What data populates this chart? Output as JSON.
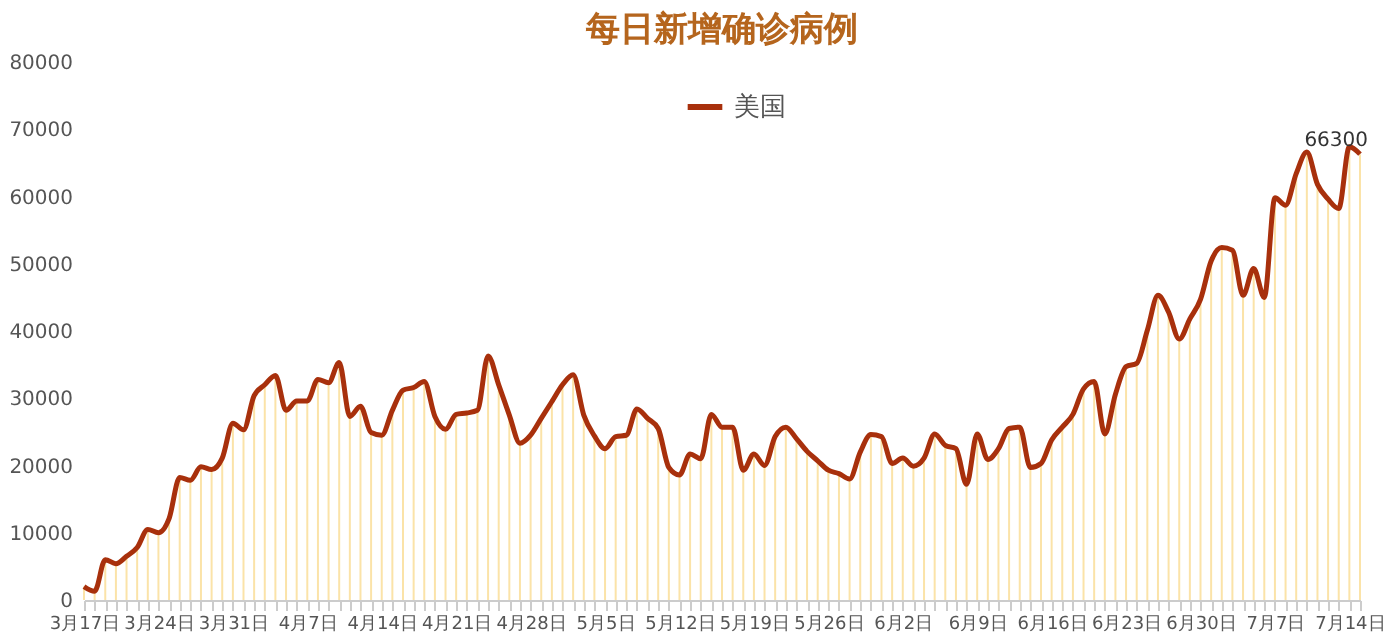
{
  "chart_data": {
    "type": "line",
    "title": "每日新增确诊病例",
    "categories": [
      "3月17日",
      null,
      null,
      null,
      null,
      null,
      null,
      "3月24日",
      null,
      null,
      null,
      null,
      null,
      null,
      "3月31日",
      null,
      null,
      null,
      null,
      null,
      null,
      "4月7日",
      null,
      null,
      null,
      null,
      null,
      null,
      "4月14日",
      null,
      null,
      null,
      null,
      null,
      null,
      "4月21日",
      null,
      null,
      null,
      null,
      null,
      null,
      "4月28日",
      null,
      null,
      null,
      null,
      null,
      null,
      "5月5日",
      null,
      null,
      null,
      null,
      null,
      null,
      "5月12日",
      null,
      null,
      null,
      null,
      null,
      null,
      "5月19日",
      null,
      null,
      null,
      null,
      null,
      null,
      "5月26日",
      null,
      null,
      null,
      null,
      null,
      null,
      "6月2日",
      null,
      null,
      null,
      null,
      null,
      null,
      "6月9日",
      null,
      null,
      null,
      null,
      null,
      null,
      "6月16日",
      null,
      null,
      null,
      null,
      null,
      null,
      "6月23日",
      null,
      null,
      null,
      null,
      null,
      null,
      "6月30日",
      null,
      null,
      null,
      null,
      null,
      null,
      "7月7日",
      null,
      null,
      null,
      null,
      null,
      null,
      "7月14日",
      null
    ],
    "series": [
      {
        "type": "bar",
        "color": "#fbe3a8",
        "values": [
          2000,
          1300,
          6000,
          5400,
          6500,
          7800,
          10500,
          10000,
          12100,
          18200,
          17800,
          19800,
          19400,
          21100,
          26300,
          25300,
          30400,
          32000,
          33400,
          28200,
          29600,
          29600,
          32800,
          32300,
          35300,
          27300,
          28800,
          24900,
          24500,
          28200,
          31200,
          31600,
          32500,
          27300,
          25400,
          27600,
          27800,
          28200,
          36300,
          32000,
          27500,
          23300,
          24500,
          27000,
          29500,
          32000,
          33500,
          27500,
          24400,
          22500,
          24300,
          24500,
          28400,
          27000,
          25500,
          19700,
          18600,
          21700,
          21000,
          27600,
          25700,
          25700,
          19300,
          21700,
          20000,
          24300,
          25700,
          24000,
          22100,
          20700,
          19300,
          18800,
          18000,
          22000,
          24600,
          24300,
          20300,
          21100,
          19900,
          21100,
          24700,
          23000,
          22500,
          17200,
          24700,
          20900,
          22500,
          25500,
          25700,
          19700,
          20300,
          23800,
          25700,
          27600,
          31400,
          32500,
          24700,
          30600,
          34700,
          35200,
          40100,
          45300,
          42800,
          38800,
          41800,
          44700,
          50400,
          52400,
          52000,
          45300,
          49300,
          45000,
          59800,
          58700,
          63400,
          66600,
          61800,
          59600,
          58200,
          67400,
          66300
        ]
      },
      {
        "name": "美国",
        "color": "#a8300c",
        "values": [
          2000,
          1300,
          6000,
          5400,
          6500,
          7800,
          10500,
          10000,
          12100,
          18200,
          17800,
          19800,
          19400,
          21100,
          26300,
          25300,
          30400,
          32000,
          33400,
          28200,
          29600,
          29600,
          32800,
          32300,
          35300,
          27300,
          28800,
          24900,
          24500,
          28200,
          31200,
          31600,
          32500,
          27300,
          25400,
          27600,
          27800,
          28200,
          36300,
          32000,
          27500,
          23300,
          24500,
          27000,
          29500,
          32000,
          33500,
          27500,
          24400,
          22500,
          24300,
          24500,
          28400,
          27000,
          25500,
          19700,
          18600,
          21700,
          21000,
          27600,
          25700,
          25700,
          19300,
          21700,
          20000,
          24300,
          25700,
          24000,
          22100,
          20700,
          19300,
          18800,
          18000,
          22000,
          24600,
          24300,
          20300,
          21100,
          19900,
          21100,
          24700,
          23000,
          22500,
          17200,
          24700,
          20900,
          22500,
          25500,
          25700,
          19700,
          20300,
          23800,
          25700,
          27600,
          31400,
          32500,
          24700,
          30600,
          34700,
          35200,
          40100,
          45300,
          42800,
          38800,
          41800,
          44700,
          50400,
          52400,
          52000,
          45300,
          49300,
          45000,
          59800,
          58700,
          63400,
          66600,
          61800,
          59600,
          58200,
          67400,
          66300
        ],
        "value_labels": [
          null,
          null,
          null,
          null,
          null,
          null,
          null,
          null,
          null,
          null,
          null,
          null,
          null,
          null,
          null,
          null,
          null,
          null,
          null,
          null,
          null,
          null,
          null,
          null,
          null,
          null,
          null,
          null,
          null,
          null,
          null,
          null,
          null,
          null,
          null,
          null,
          null,
          null,
          null,
          null,
          null,
          null,
          null,
          null,
          null,
          null,
          null,
          null,
          null,
          null,
          null,
          null,
          null,
          null,
          null,
          null,
          null,
          null,
          null,
          null,
          null,
          null,
          null,
          null,
          null,
          null,
          null,
          null,
          null,
          null,
          null,
          null,
          null,
          null,
          null,
          null,
          null,
          null,
          null,
          null,
          null,
          null,
          null,
          null,
          null,
          null,
          null,
          null,
          null,
          null,
          null,
          null,
          null,
          null,
          null,
          null,
          null,
          null,
          null,
          null,
          null,
          null,
          null,
          null,
          null,
          null,
          null,
          null,
          null,
          null,
          null,
          null,
          null,
          null,
          null,
          null,
          null,
          null,
          null,
          null,
          "66300"
        ]
      }
    ],
    "ylim": [
      0,
      80000
    ],
    "yticks": [
      0,
      10000,
      20000,
      30000,
      40000,
      50000,
      60000,
      70000,
      80000
    ],
    "grid": false,
    "legend": "top"
  }
}
